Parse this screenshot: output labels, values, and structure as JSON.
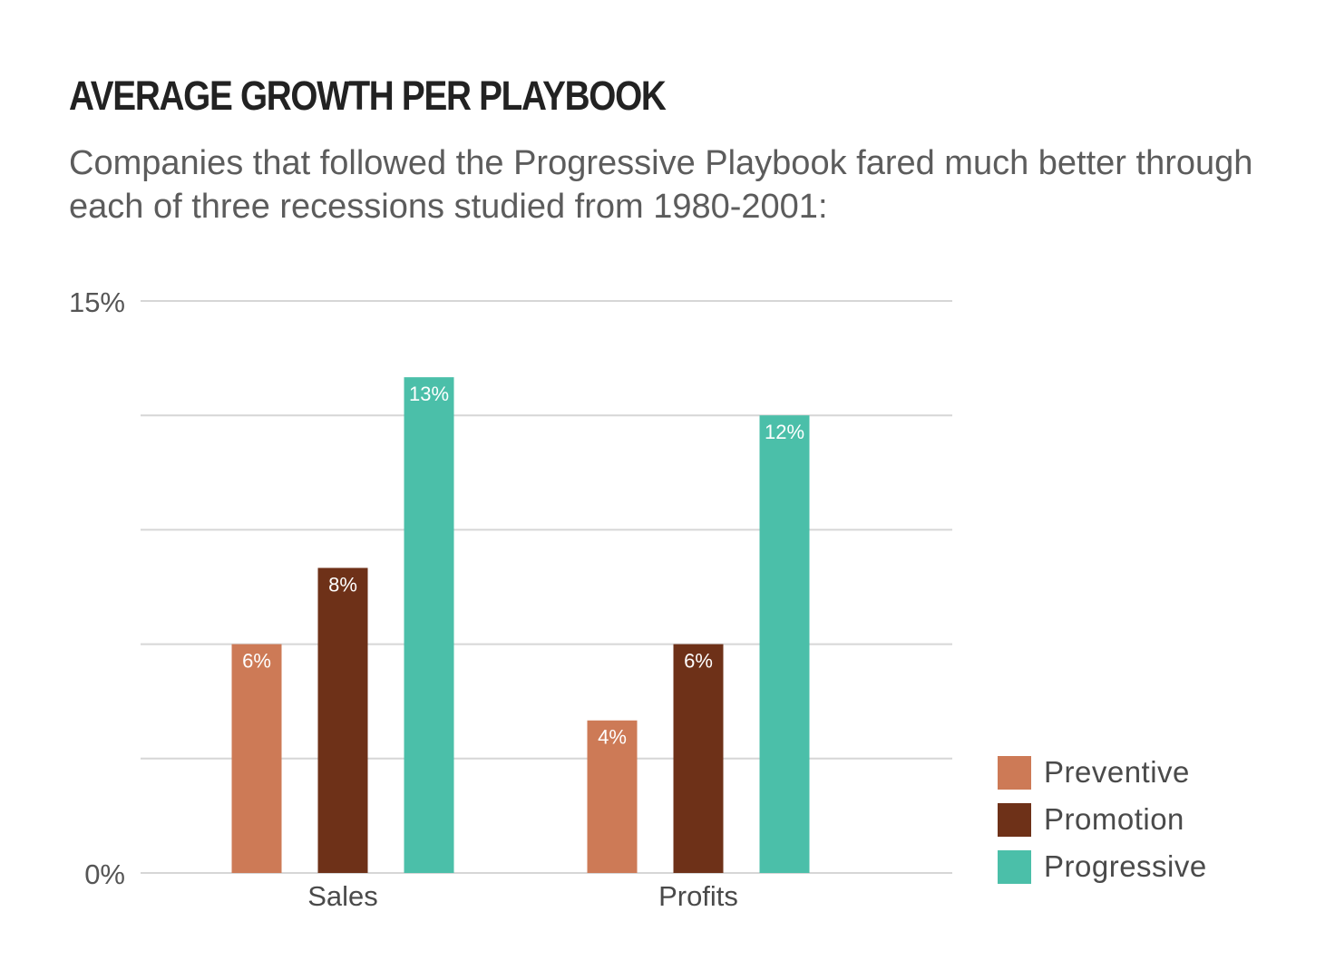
{
  "title": "AVERAGE GROWTH PER PLAYBOOK",
  "subtitle": "Companies that followed the Progressive Playbook fared much better through each of three recessions studied from 1980-2001:",
  "chart_data": {
    "type": "bar",
    "categories": [
      "Sales",
      "Profits"
    ],
    "series": [
      {
        "name": "Preventive",
        "values": [
          6,
          4
        ],
        "labels": [
          "6%",
          "4%"
        ],
        "color": "#cd7a56"
      },
      {
        "name": "Promotion",
        "values": [
          8,
          6
        ],
        "labels": [
          "8%",
          "6%"
        ],
        "color": "#6e3118"
      },
      {
        "name": "Progressive",
        "values": [
          13,
          12
        ],
        "labels": [
          "13%",
          "12%"
        ],
        "color": "#4bbfa9"
      }
    ],
    "ylim": [
      0,
      15
    ],
    "ytick_labels": [
      {
        "value": 15,
        "label": "15%"
      },
      {
        "value": 0,
        "label": "0%"
      }
    ],
    "gridlines": [
      0,
      3,
      6,
      9,
      12,
      15
    ],
    "grid": true,
    "legend_position": "bottom-right",
    "xlabel": "",
    "ylabel": ""
  }
}
